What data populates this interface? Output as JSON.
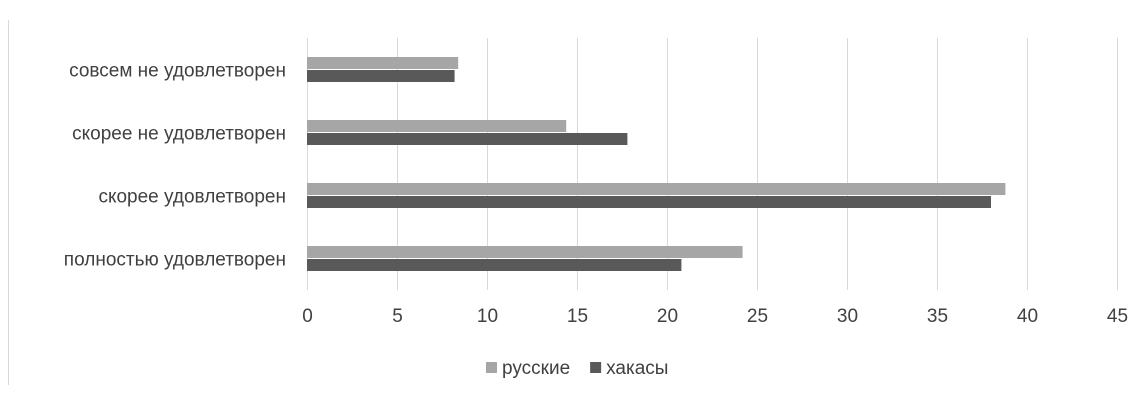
{
  "chart_data": {
    "type": "bar",
    "orientation": "horizontal",
    "categories": [
      "совсем не удовлетворен",
      "скорее не удовлетворен",
      "скорее удовлетворен",
      "полностью удовлетворен"
    ],
    "series": [
      {
        "name": "русские",
        "color": "#a6a6a6",
        "values": [
          8.4,
          14.4,
          38.8,
          24.2
        ]
      },
      {
        "name": "хакасы",
        "color": "#595959",
        "values": [
          8.2,
          17.8,
          38.0,
          20.8
        ]
      }
    ],
    "xlim": [
      0,
      45
    ],
    "xticks": [
      "0",
      "5",
      "10",
      "15",
      "20",
      "25",
      "30",
      "35",
      "40",
      "45"
    ],
    "grid": true,
    "legend_position": "bottom"
  }
}
